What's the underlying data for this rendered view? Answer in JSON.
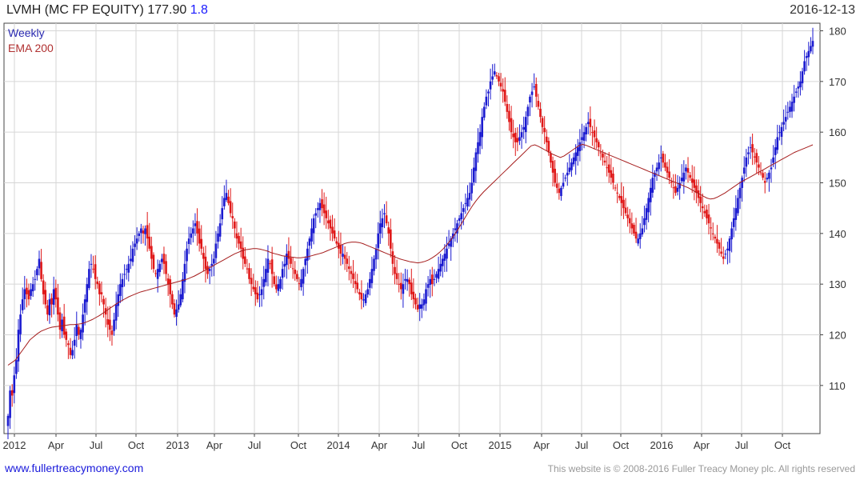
{
  "header": {
    "ticker": "LVMH (MC FP EQUITY)",
    "price": "177.90",
    "change": "1.8",
    "date": "2016-12-13"
  },
  "footer": {
    "site": "www.fullertreacymoney.com",
    "copyright": "This website is © 2008-2016 Fuller Treacy Money plc. All rights reserved"
  },
  "colors": {
    "up": "#1a1ad0",
    "down": "#e01818",
    "ema": "#a51c1c",
    "grid": "#d6d6d6",
    "frame": "#444444"
  },
  "chart_data": {
    "type": "candlestick-weekly",
    "legend": [
      {
        "label": "Weekly",
        "color": "#2a2ab0"
      },
      {
        "label": "EMA 200",
        "color": "#b03030"
      }
    ],
    "legend_position": "top-left",
    "ylim": [
      100.5,
      181.5
    ],
    "y_ticks": [
      110,
      120,
      130,
      140,
      150,
      160,
      170,
      180
    ],
    "y_axis_side": "right",
    "x_tick_labels": [
      "2012",
      "Apr",
      "Jul",
      "Oct",
      "2013",
      "Apr",
      "Jul",
      "Oct",
      "2014",
      "Apr",
      "Jul",
      "Oct",
      "2015",
      "Apr",
      "Jul",
      "Oct",
      "2016",
      "Apr",
      "Jul",
      "Oct"
    ],
    "grid": true,
    "series_close": [
      [
        104,
        109,
        108,
        112,
        115,
        121,
        124,
        127,
        129,
        128,
        127,
        129,
        130,
        131,
        133,
        135,
        131,
        128,
        126,
        124,
        127,
        126,
        129,
        127,
        124,
        121,
        123,
        120,
        119,
        118,
        116,
        117,
        119,
        122,
        120,
        121,
        124,
        127,
        130,
        133,
        134,
        133,
        131,
        130,
        128,
        128,
        126,
        124,
        122,
        121,
        120,
        123,
        126,
        128,
        130,
        131,
        132,
        133,
        134,
        135,
        137,
        138,
        139,
        140,
        141,
        140,
        141,
        139,
        137,
        135,
        133,
        132,
        133,
        134,
        135,
        134,
        132,
        130,
        128,
        126,
        124,
        125,
        126,
        128,
        131,
        134,
        137,
        139,
        140,
        141,
        142,
        140,
        138,
        137,
        135,
        133,
        132,
        133,
        134,
        135,
        138,
        140,
        142,
        145,
        147,
        148,
        146,
        144,
        143,
        141,
        139,
        138,
        137,
        135,
        134,
        133,
        131,
        130,
        129,
        128,
        127,
        128,
        129,
        131,
        133,
        135,
        134,
        132,
        130,
        129,
        130,
        131,
        133,
        134,
        136,
        135,
        134,
        133,
        132,
        131,
        130,
        131,
        133,
        135,
        137,
        139,
        141,
        143,
        144,
        145,
        146,
        145,
        144,
        143,
        142,
        141,
        140,
        139,
        138,
        137,
        136,
        136
      ],
      [
        135,
        134,
        133,
        132,
        131,
        130,
        129,
        128,
        127,
        127,
        128,
        129,
        131,
        133,
        135,
        137,
        140,
        142,
        143,
        144,
        142,
        140,
        137,
        134,
        132,
        131,
        130,
        129,
        130,
        131,
        131,
        130,
        128,
        127,
        126,
        125,
        126,
        126,
        127,
        129,
        130,
        131,
        130,
        131,
        132,
        133,
        134,
        135,
        136,
        137,
        138,
        139,
        140,
        141,
        142,
        143,
        144,
        145,
        146,
        147,
        148,
        150,
        153,
        156,
        158,
        160,
        163,
        165,
        167,
        168,
        170,
        171,
        172,
        171,
        170,
        169,
        168,
        166,
        164,
        162,
        160,
        159,
        158,
        158,
        159,
        160,
        161,
        163,
        165,
        167,
        168,
        169,
        167,
        165,
        163,
        161,
        160,
        158,
        156,
        154,
        152,
        150,
        149,
        148,
        149,
        150,
        151,
        152,
        153,
        154,
        155,
        156,
        157,
        158,
        159,
        160,
        161,
        162,
        161,
        160,
        159,
        158,
        157,
        156,
        155,
        154,
        153,
        152,
        151,
        150,
        149,
        148,
        147,
        146,
        145,
        144,
        143,
        142,
        141,
        140,
        139,
        139,
        140,
        141,
        143,
        145,
        147,
        149,
        151,
        152,
        153,
        154,
        155,
        154,
        153,
        152,
        151,
        150,
        149,
        148,
        149,
        150,
        151,
        152,
        153,
        152,
        151,
        150,
        149,
        148,
        147,
        146,
        145,
        144,
        143,
        142,
        141,
        140,
        139,
        138,
        137,
        136,
        135,
        136,
        137,
        139,
        141,
        143,
        145,
        147,
        149,
        151,
        153,
        155,
        156,
        157,
        156,
        155,
        154,
        153,
        152,
        151,
        150,
        151,
        152,
        153,
        155,
        157,
        159,
        160,
        161,
        162,
        163,
        164,
        165,
        166,
        167,
        168,
        169,
        170,
        172,
        174,
        175,
        176,
        177,
        178
      ]
    ],
    "ema_200": [
      114,
      114.5,
      115,
      116,
      117,
      118,
      119,
      119.6,
      120.2,
      120.7,
      121,
      121.3,
      121.5,
      121.6,
      121.7,
      121.8,
      121.9,
      122,
      122,
      122.1,
      122.2,
      122.4,
      122.7,
      123,
      123.4,
      123.8,
      124.3,
      124.8,
      125.3,
      125.8,
      126.3,
      126.7,
      127.1,
      127.5,
      127.8,
      128.1,
      128.4,
      128.6,
      128.8,
      129,
      129.2,
      129.4,
      129.6,
      129.8,
      130,
      130.2,
      130.4,
      130.6,
      130.8,
      131,
      131.3,
      131.6,
      132,
      132.4,
      132.8,
      133.2,
      133.6,
      134,
      134.4,
      134.8,
      135.2,
      135.6,
      136,
      136.3,
      136.6,
      136.8,
      136.9,
      137,
      137,
      136.9,
      136.7,
      136.5,
      136.2,
      136,
      135.8,
      135.6,
      135.5,
      135.4,
      135.3,
      135.2,
      135.2,
      135.3,
      135.4,
      135.6,
      135.8,
      136,
      136.2,
      136.5,
      136.8,
      137.1,
      137.4,
      137.7,
      138,
      138.2,
      138.3,
      138.3,
      138.2,
      138,
      137.7,
      137.4,
      137.1,
      136.8,
      136.5,
      136.2,
      135.9,
      135.6,
      135.3,
      135,
      134.8,
      134.6,
      134.4,
      134.3,
      134.2,
      134.3,
      134.5,
      134.8,
      135.2,
      135.7,
      136.3,
      137,
      137.8,
      138.7,
      139.7,
      140.8,
      142,
      143.2,
      144.4,
      145.5,
      146.5,
      147.4,
      148.2,
      148.9,
      149.6,
      150.3,
      151,
      151.7,
      152.4,
      153.1,
      153.8,
      154.5,
      155.2,
      155.9,
      156.6,
      157.3,
      157.5,
      157.2,
      156.8,
      156.4,
      156,
      155.6,
      155.3,
      155,
      155.3,
      155.8,
      156.3,
      156.8,
      157.3,
      157.6,
      157.4,
      157.1,
      156.8,
      156.5,
      156.2,
      155.9,
      155.6,
      155.3,
      155,
      154.7,
      154.4,
      154.1,
      153.8,
      153.5,
      153.2,
      152.9,
      152.6,
      152.3,
      152,
      151.7,
      151.4,
      151.1,
      150.8,
      150.5,
      150.2,
      149.9,
      149.6,
      149.3,
      149,
      148.6,
      148.2,
      147.8,
      147.4,
      147,
      146.8,
      146.9,
      147.2,
      147.6,
      148,
      148.5,
      149,
      149.5,
      150,
      150.4,
      150.8,
      151.2,
      151.6,
      152,
      152.4,
      152.8,
      153.2,
      153.6,
      154,
      154.4,
      154.8,
      155.2,
      155.6,
      156,
      156.3,
      156.6,
      156.9,
      157.2,
      157.5
    ]
  }
}
